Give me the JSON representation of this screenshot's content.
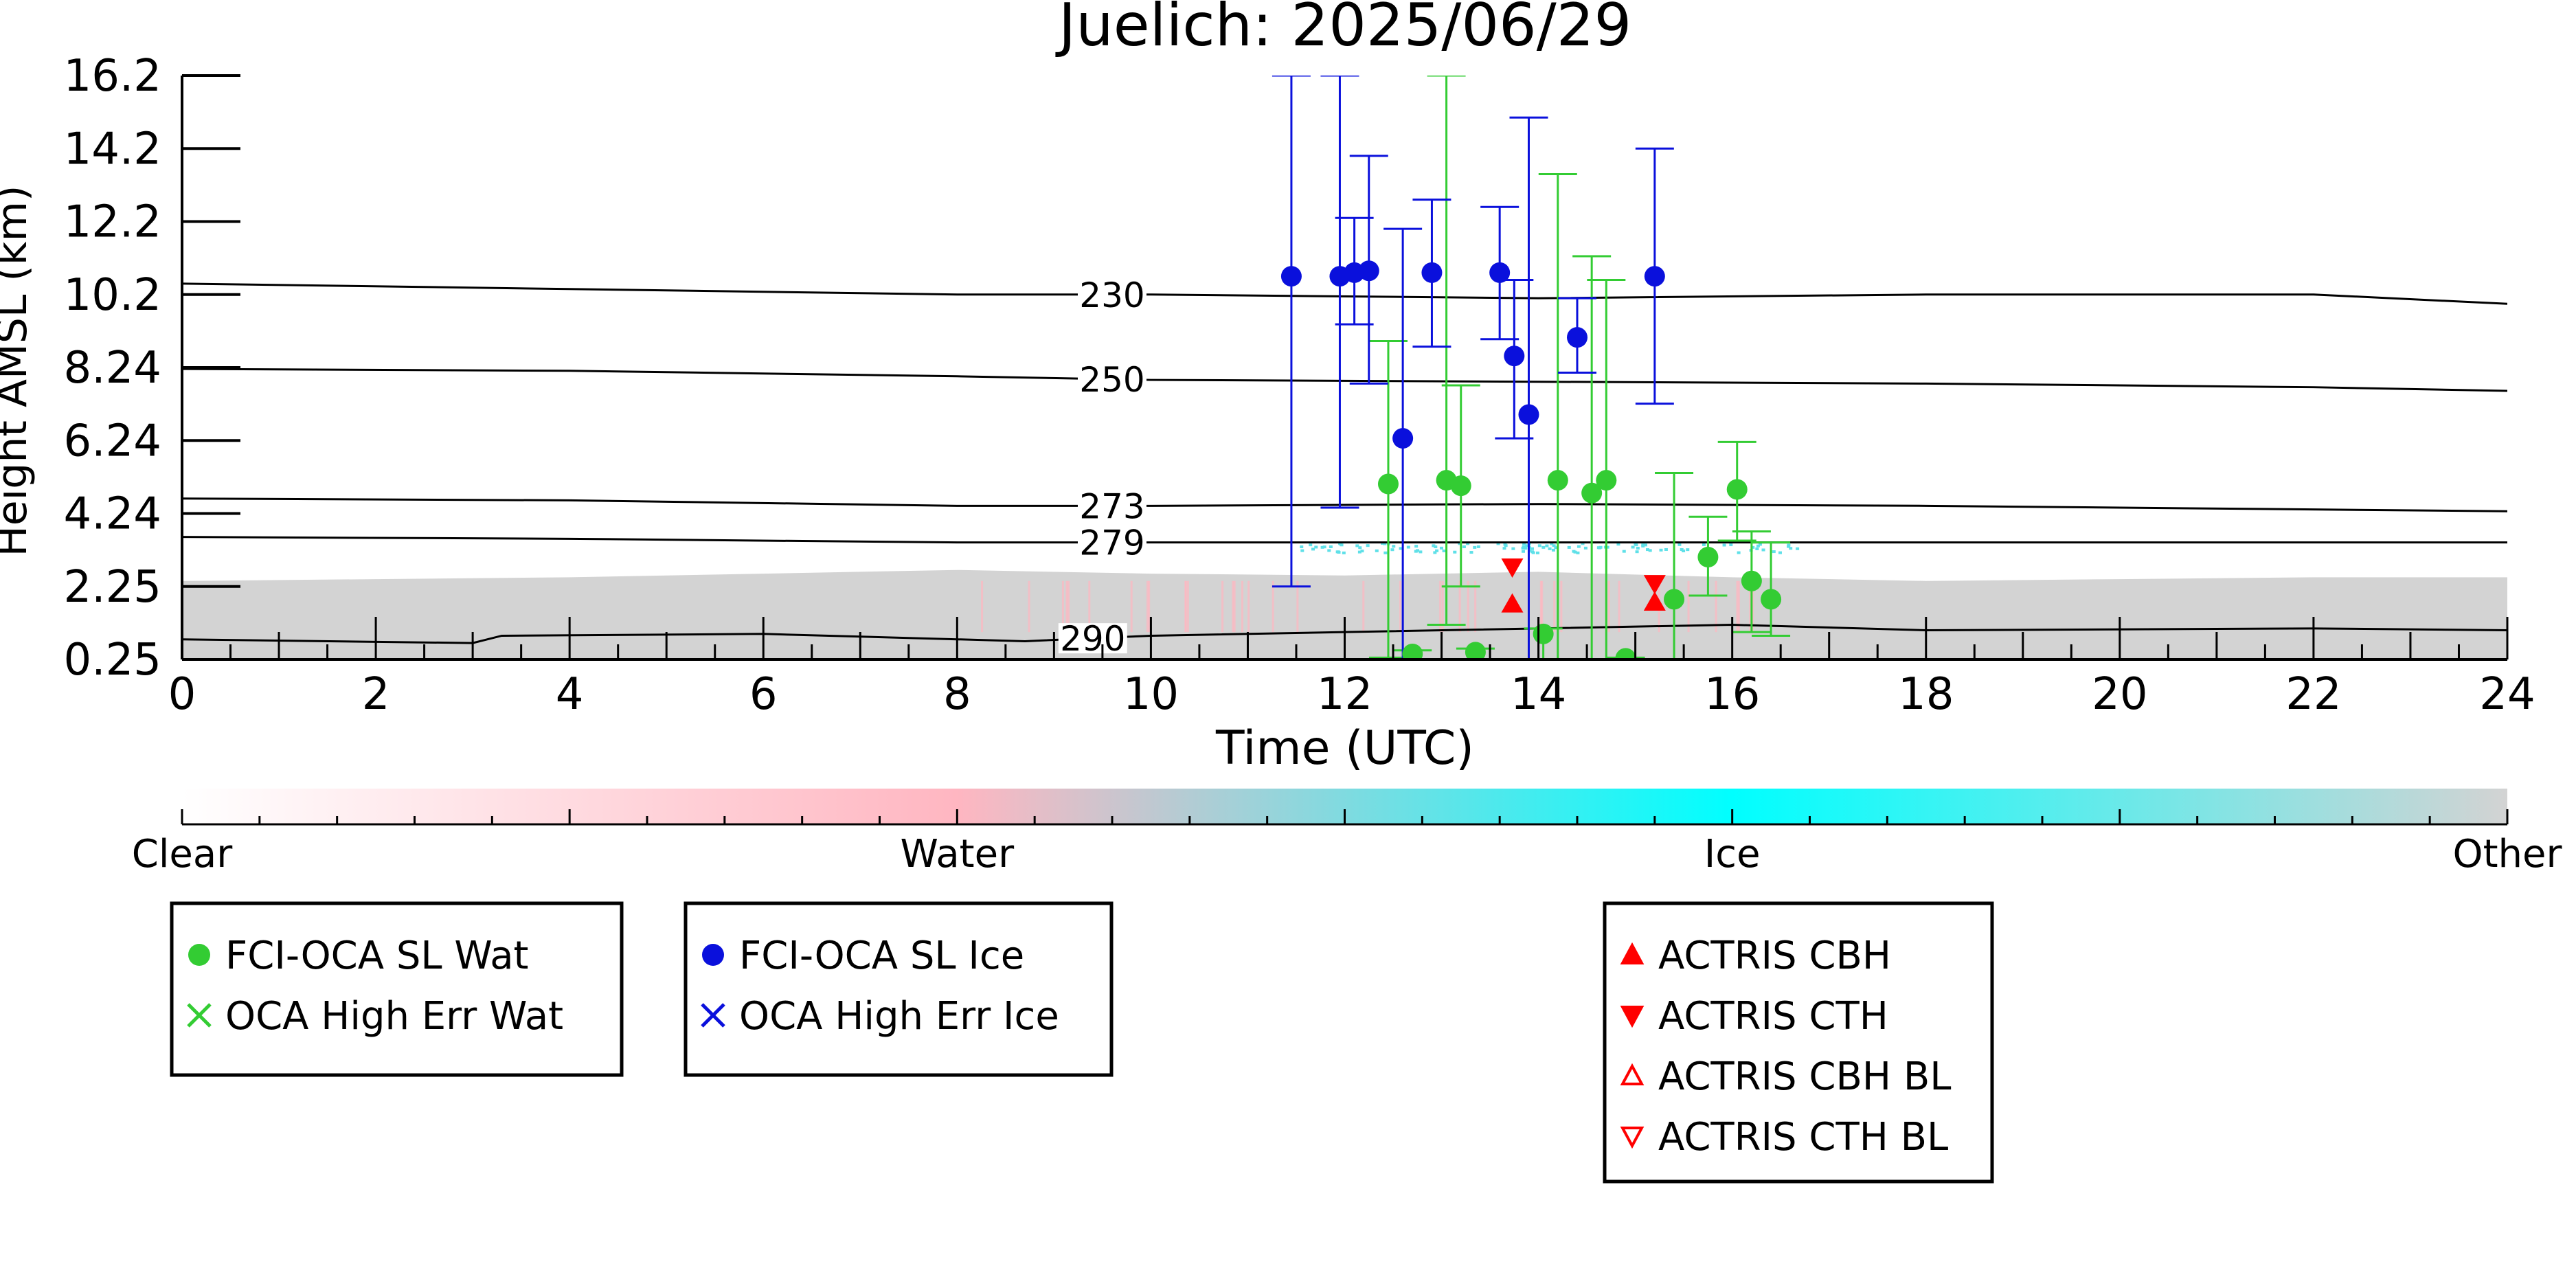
{
  "chart_data": {
    "type": "scatter",
    "title": "Juelich: 2025/06/29",
    "xlabel": "Time (UTC)",
    "ylabel": "Height AMSL (km)",
    "xlim": [
      0,
      24
    ],
    "xticks": [
      0,
      2,
      4,
      6,
      8,
      10,
      12,
      14,
      16,
      18,
      20,
      22,
      24
    ],
    "ylim": [
      0.25,
      16.2
    ],
    "ytick_labels": [
      "0.25",
      "2.25",
      "4.24",
      "6.24",
      "8.24",
      "10.2",
      "12.2",
      "14.2",
      "16.2"
    ],
    "ytick_values": [
      0.25,
      2.25,
      4.24,
      6.24,
      8.24,
      10.2,
      12.2,
      14.2,
      16.2
    ],
    "grid": false,
    "colorbar": {
      "labels": [
        "Clear",
        "Water",
        "Ice",
        "Other"
      ],
      "stops": [
        "#ffffff",
        "#ffb6c1",
        "#00ffff",
        "#d3d3d3"
      ]
    },
    "background": {
      "cloud_mask_color": "#d3d3d3",
      "cloud_mask_top": [
        [
          0,
          2.4
        ],
        [
          2,
          2.45
        ],
        [
          4,
          2.5
        ],
        [
          6,
          2.6
        ],
        [
          8,
          2.7
        ],
        [
          10,
          2.6
        ],
        [
          12,
          2.55
        ],
        [
          14,
          2.65
        ],
        [
          16,
          2.5
        ],
        [
          18,
          2.4
        ],
        [
          20,
          2.45
        ],
        [
          22,
          2.5
        ],
        [
          24,
          2.5
        ]
      ],
      "ice_dots_range": [
        11.5,
        16.8
      ],
      "ice_dots_height": 3.35,
      "water_color": "#ffb6c1"
    },
    "contours": [
      {
        "label": "230",
        "label_x": 9.6,
        "points": [
          [
            0,
            10.5
          ],
          [
            4,
            10.35
          ],
          [
            8,
            10.2
          ],
          [
            10,
            10.2
          ],
          [
            14,
            10.1
          ],
          [
            18,
            10.2
          ],
          [
            22,
            10.2
          ],
          [
            24,
            9.95
          ]
        ]
      },
      {
        "label": "250",
        "label_x": 9.6,
        "points": [
          [
            0,
            8.2
          ],
          [
            4,
            8.15
          ],
          [
            8,
            8.0
          ],
          [
            10,
            7.9
          ],
          [
            14,
            7.85
          ],
          [
            18,
            7.8
          ],
          [
            22,
            7.7
          ],
          [
            24,
            7.6
          ]
        ]
      },
      {
        "label": "273",
        "label_x": 9.6,
        "points": [
          [
            0,
            4.65
          ],
          [
            4,
            4.6
          ],
          [
            8,
            4.45
          ],
          [
            10,
            4.45
          ],
          [
            14,
            4.5
          ],
          [
            18,
            4.45
          ],
          [
            22,
            4.35
          ],
          [
            24,
            4.3
          ]
        ]
      },
      {
        "label": "279",
        "label_x": 9.6,
        "points": [
          [
            0,
            3.6
          ],
          [
            4,
            3.55
          ],
          [
            8,
            3.45
          ],
          [
            10,
            3.45
          ],
          [
            14,
            3.45
          ],
          [
            18,
            3.45
          ],
          [
            22,
            3.45
          ],
          [
            24,
            3.45
          ]
        ]
      },
      {
        "label": "290",
        "label_x": 9.4,
        "points": [
          [
            0,
            0.8
          ],
          [
            3,
            0.7
          ],
          [
            3.3,
            0.9
          ],
          [
            6,
            0.95
          ],
          [
            8.7,
            0.75
          ],
          [
            10,
            0.9
          ],
          [
            12,
            1.0
          ],
          [
            16,
            1.2
          ],
          [
            18,
            1.05
          ],
          [
            22,
            1.1
          ],
          [
            24,
            1.05
          ]
        ]
      }
    ],
    "series": [
      {
        "name": "FCI-OCA SL Wat",
        "color": "#33cc33",
        "points": [
          {
            "x": 12.45,
            "y": 5.05,
            "lo": 0.3,
            "hi": 8.95
          },
          {
            "x": 13.05,
            "y": 5.15,
            "lo": 1.2,
            "hi": 16.2
          },
          {
            "x": 13.2,
            "y": 5.0,
            "lo": 2.25,
            "hi": 7.75
          },
          {
            "x": 14.2,
            "y": 5.15,
            "lo": 0.25,
            "hi": 13.5
          },
          {
            "x": 14.55,
            "y": 4.8,
            "lo": 0.25,
            "hi": 11.25
          },
          {
            "x": 14.7,
            "y": 5.15,
            "lo": 0.25,
            "hi": 10.6
          },
          {
            "x": 15.4,
            "y": 1.9,
            "lo": 0.25,
            "hi": 5.35
          },
          {
            "x": 15.75,
            "y": 3.05,
            "lo": 2.0,
            "hi": 4.15
          },
          {
            "x": 16.05,
            "y": 4.9,
            "lo": 3.5,
            "hi": 6.2
          },
          {
            "x": 16.2,
            "y": 2.4,
            "lo": 1.0,
            "hi": 3.75
          },
          {
            "x": 16.4,
            "y": 1.9,
            "lo": 0.9,
            "hi": 3.45
          },
          {
            "x": 12.7,
            "y": 0.4,
            "lo": 0.25,
            "hi": 0.5
          },
          {
            "x": 13.35,
            "y": 0.45,
            "lo": 0.25,
            "hi": 0.55
          },
          {
            "x": 14.05,
            "y": 0.95,
            "lo": 0.25,
            "hi": 1.1
          },
          {
            "x": 14.9,
            "y": 0.28,
            "lo": 0.25,
            "hi": 0.3
          }
        ]
      },
      {
        "name": "OCA High Err Wat",
        "color": "#33cc33",
        "points": []
      },
      {
        "name": "FCI-OCA SL Ice",
        "color": "#0a10dc",
        "points": [
          {
            "x": 11.45,
            "y": 10.7,
            "lo": 2.25,
            "hi": 16.2
          },
          {
            "x": 11.95,
            "y": 10.7,
            "lo": 4.4,
            "hi": 16.2
          },
          {
            "x": 12.1,
            "y": 10.8,
            "lo": 9.4,
            "hi": 12.3
          },
          {
            "x": 12.25,
            "y": 10.85,
            "lo": 7.8,
            "hi": 14.0
          },
          {
            "x": 12.6,
            "y": 6.3,
            "lo": 0.25,
            "hi": 12.0
          },
          {
            "x": 12.9,
            "y": 10.8,
            "lo": 8.8,
            "hi": 12.8
          },
          {
            "x": 13.6,
            "y": 10.8,
            "lo": 9.0,
            "hi": 12.6
          },
          {
            "x": 13.75,
            "y": 8.55,
            "lo": 6.3,
            "hi": 10.6
          },
          {
            "x": 13.9,
            "y": 6.95,
            "lo": 0.25,
            "hi": 15.05
          },
          {
            "x": 14.4,
            "y": 9.05,
            "lo": 8.1,
            "hi": 10.1
          },
          {
            "x": 15.2,
            "y": 10.7,
            "lo": 7.25,
            "hi": 14.2
          }
        ]
      },
      {
        "name": "OCA High Err Ice",
        "color": "#0a10dc",
        "points": []
      },
      {
        "name": "ACTRIS CBH",
        "color": "#ff0000",
        "points": [
          {
            "x": 13.73,
            "y": 1.8
          },
          {
            "x": 15.2,
            "y": 1.85
          }
        ]
      },
      {
        "name": "ACTRIS CTH",
        "color": "#ff0000",
        "points": [
          {
            "x": 13.73,
            "y": 2.75
          },
          {
            "x": 15.2,
            "y": 2.3
          }
        ]
      },
      {
        "name": "ACTRIS CBH BL",
        "color": "#ff0000",
        "points": []
      },
      {
        "name": "ACTRIS CTH BL",
        "color": "#ff0000",
        "points": []
      }
    ],
    "legends": [
      [
        "FCI-OCA SL Wat",
        "OCA High Err Wat"
      ],
      [
        "FCI-OCA SL Ice",
        "OCA High Err Ice"
      ],
      [
        "ACTRIS CBH",
        "ACTRIS CTH",
        "ACTRIS CBH BL",
        "ACTRIS CTH BL"
      ]
    ]
  }
}
